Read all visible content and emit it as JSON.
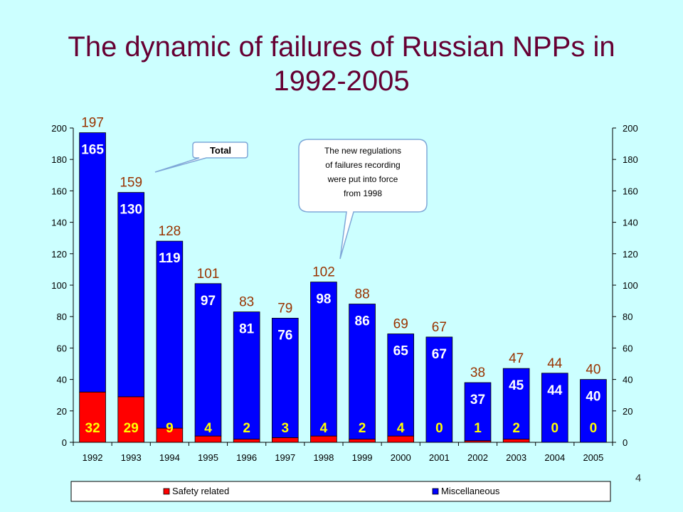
{
  "slide": {
    "title_line1": "The dynamic of failures of Russian NPPs in",
    "title_line2": "1992-2005",
    "page_number": "4"
  },
  "callouts": {
    "total": "Total",
    "regulation_lines": [
      "The new regulations",
      "of failures recording",
      "were put into force",
      "from 1998"
    ]
  },
  "colors": {
    "safety": "#FF0000",
    "misc": "#0000FF",
    "total_label": "#993300",
    "background": "#CCFFFF"
  },
  "chart_data": {
    "type": "bar",
    "stacked": true,
    "categories": [
      "1992",
      "1993",
      "1994",
      "1995",
      "1996",
      "1997",
      "1998",
      "1999",
      "2000",
      "2001",
      "2002",
      "2003",
      "2004",
      "2005"
    ],
    "series": [
      {
        "name": "Safety related",
        "values": [
          32,
          29,
          9,
          4,
          2,
          3,
          4,
          2,
          4,
          0,
          1,
          2,
          0,
          0
        ]
      },
      {
        "name": "Miscellaneous",
        "values": [
          165,
          130,
          119,
          97,
          81,
          76,
          98,
          86,
          65,
          67,
          37,
          45,
          44,
          40
        ]
      }
    ],
    "totals": [
      197,
      159,
      128,
      101,
      83,
      79,
      102,
      88,
      69,
      67,
      38,
      47,
      44,
      40
    ],
    "ylim": [
      0,
      200
    ],
    "yticks": [
      "0",
      "20",
      "40",
      "60",
      "80",
      "100",
      "120",
      "140",
      "160",
      "180",
      "200"
    ],
    "y2ticks": [
      "0",
      "20",
      "40",
      "60",
      "80",
      "100",
      "120",
      "140",
      "160",
      "180",
      "200"
    ],
    "legend_position": "bottom",
    "grid": false
  }
}
